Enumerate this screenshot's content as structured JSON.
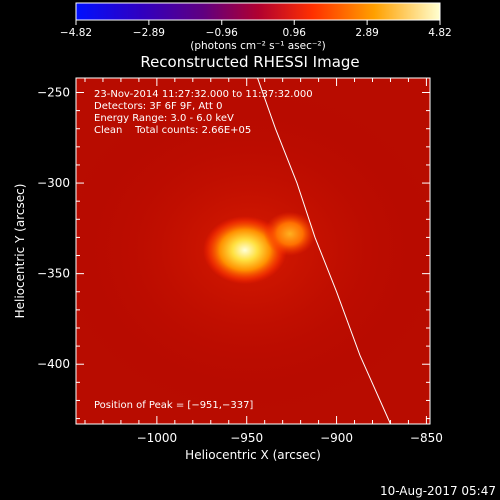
{
  "chart_data": {
    "type": "heatmap",
    "title": "Reconstructed RHESSI Image",
    "xlabel": "Heliocentric X (arcsec)",
    "ylabel": "Heliocentric Y (arcsec)",
    "xlim": [
      -1045,
      -848
    ],
    "ylim": [
      -433,
      -242
    ],
    "xticks": [
      -1000,
      -950,
      -900,
      -850
    ],
    "xtick_labels": [
      "−1000",
      "−950",
      "−900",
      "−850"
    ],
    "yticks": [
      -250,
      -300,
      -350,
      -400
    ],
    "ytick_labels": [
      "−250",
      "−300",
      "−350",
      "−400"
    ],
    "colorbar": {
      "min": -4.82,
      "max": 4.82,
      "ticks": [
        -4.82,
        -2.89,
        -0.96,
        0.96,
        2.89,
        4.82
      ],
      "tick_labels": [
        "−4.82",
        "−2.89",
        "−0.96",
        "0.96",
        "2.89",
        "4.82"
      ],
      "units_label": "(photons cm⁻² s⁻¹ asec⁻²)"
    },
    "annotations": {
      "time_range": "23-Nov-2014 11:27:32.000 to 11:37:32.000",
      "detectors": "Detectors: 3F 6F 9F, Att 0",
      "energy_range": "Energy Range: 3.0 - 6.0 keV",
      "method_counts": "Clean    Total counts: 2.66E+05",
      "peak": "Position of Peak = [−951,−337]"
    },
    "sources": [
      {
        "x": -951,
        "y": -337,
        "peak_intensity": 4.82,
        "label": "main source"
      },
      {
        "x": -926,
        "y": -328,
        "peak_intensity": 3.0,
        "label": "secondary source"
      }
    ],
    "limb_curve": [
      {
        "x": -944,
        "y": -242
      },
      {
        "x": -934,
        "y": -270
      },
      {
        "x": -922,
        "y": -300
      },
      {
        "x": -912,
        "y": -330
      },
      {
        "x": -900,
        "y": -360
      },
      {
        "x": -887,
        "y": -395
      },
      {
        "x": -870,
        "y": -433
      }
    ],
    "colors": {
      "background": "#000000",
      "frame": "#ffffff",
      "colormap": [
        "#0000ff",
        "#4b0082",
        "#8b0000",
        "#ff4500",
        "#ffa500",
        "#ffffaa"
      ]
    }
  },
  "footer": {
    "date": "10-Aug-2017 05:47"
  }
}
